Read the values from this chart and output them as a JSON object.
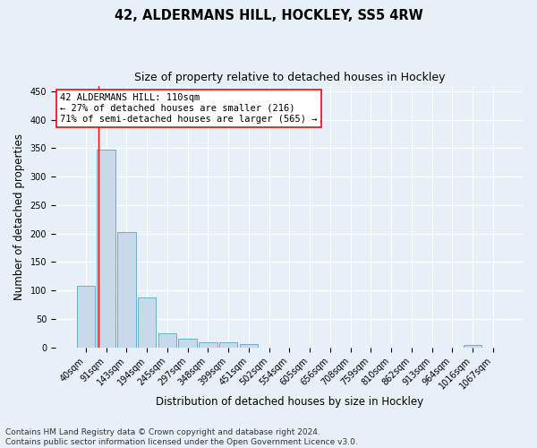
{
  "title": "42, ALDERMANS HILL, HOCKLEY, SS5 4RW",
  "subtitle": "Size of property relative to detached houses in Hockley",
  "xlabel": "Distribution of detached houses by size in Hockley",
  "ylabel": "Number of detached properties",
  "footer_line1": "Contains HM Land Registry data © Crown copyright and database right 2024.",
  "footer_line2": "Contains public sector information licensed under the Open Government Licence v3.0.",
  "bin_labels": [
    "40sqm",
    "91sqm",
    "143sqm",
    "194sqm",
    "245sqm",
    "297sqm",
    "348sqm",
    "399sqm",
    "451sqm",
    "502sqm",
    "554sqm",
    "605sqm",
    "656sqm",
    "708sqm",
    "759sqm",
    "810sqm",
    "862sqm",
    "913sqm",
    "964sqm",
    "1016sqm",
    "1067sqm"
  ],
  "bar_heights": [
    108,
    348,
    202,
    88,
    24,
    15,
    8,
    8,
    5,
    0,
    0,
    0,
    0,
    0,
    0,
    0,
    0,
    0,
    0,
    4,
    0
  ],
  "bar_color": "#c8daea",
  "bar_edge_color": "#6aafd4",
  "annotation_text_line1": "42 ALDERMANS HILL: 110sqm",
  "annotation_text_line2": "← 27% of detached houses are smaller (216)",
  "annotation_text_line3": "71% of semi-detached houses are larger (565) →",
  "red_line_bin": 1,
  "ylim": [
    0,
    460
  ],
  "yticks": [
    0,
    50,
    100,
    150,
    200,
    250,
    300,
    350,
    400,
    450
  ],
  "background_color": "#e8f0f7",
  "grid_color": "#ffffff",
  "annotation_fontsize": 7.5,
  "title_fontsize": 10.5,
  "subtitle_fontsize": 9,
  "xlabel_fontsize": 8.5,
  "ylabel_fontsize": 8.5,
  "tick_fontsize": 7,
  "footer_fontsize": 6.5
}
